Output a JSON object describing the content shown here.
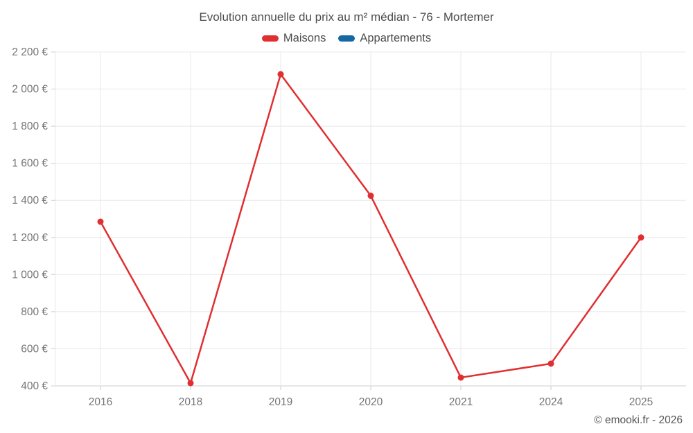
{
  "title": "Evolution annuelle du prix au m² médian - 76 - Mortemer",
  "legend": [
    {
      "label": "Maisons",
      "color": "#e12e30"
    },
    {
      "label": "Appartements",
      "color": "#1668a5"
    }
  ],
  "footer": {
    "copyright": "© emooki.fr - 2026"
  },
  "chart_data": {
    "type": "line",
    "title": "Evolution annuelle du prix au m² médian - 76 - Mortemer",
    "categories": [
      "2016",
      "2018",
      "2019",
      "2020",
      "2021",
      "2024",
      "2025"
    ],
    "series": [
      {
        "name": "Maisons",
        "color": "#e12e30",
        "values": [
          1285,
          415,
          2080,
          1425,
          445,
          520,
          1200
        ]
      },
      {
        "name": "Appartements",
        "color": "#1668a5",
        "values": []
      }
    ],
    "xlabel": "",
    "ylabel": "",
    "ylim": [
      400,
      2200
    ],
    "ytick_step": 200,
    "ytick_suffix": " €",
    "grid": true,
    "legend_position": "top",
    "colors": {
      "grid": "#e8e8e8",
      "axis": "#cccccc",
      "tick_label": "#757575",
      "title": "#4d4d4d"
    }
  }
}
